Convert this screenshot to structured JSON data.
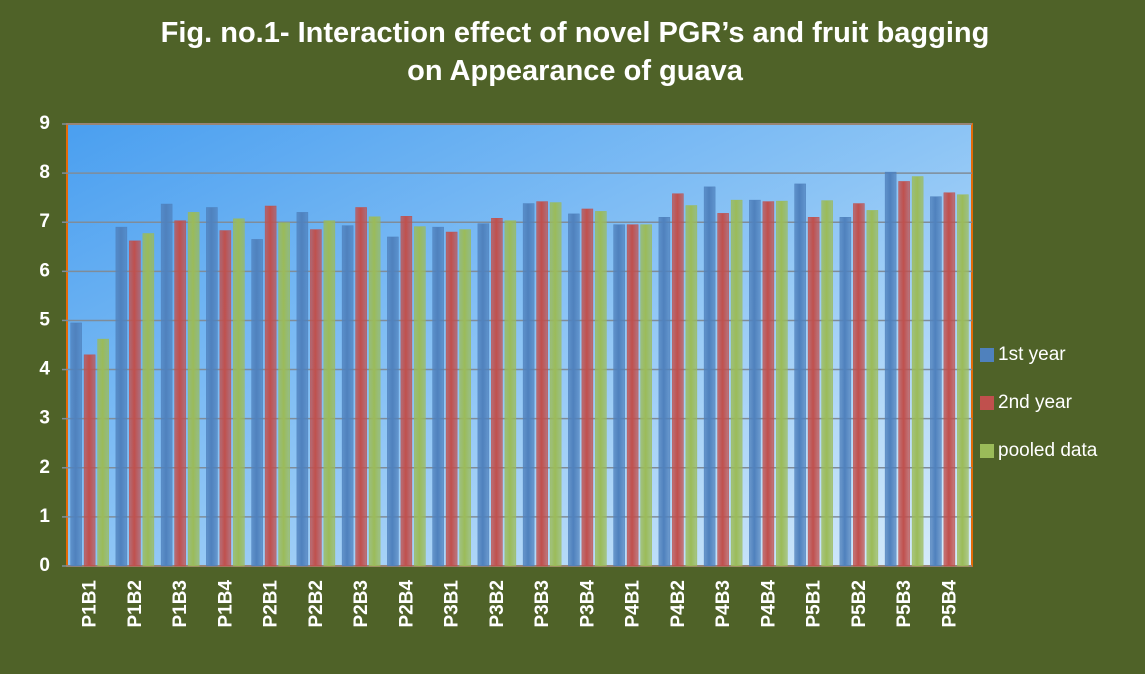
{
  "chart_data": {
    "type": "bar",
    "title": "Fig. no.1- Interaction effect of novel PGR’s and fruit bagging on Appearance  of guava",
    "categories": [
      "P1B1",
      "P1B2",
      "P1B3",
      "P1B4",
      "P2B1",
      "P2B2",
      "P2B3",
      "P2B4",
      "P3B1",
      "P3B2",
      "P3B3",
      "P3B4",
      "P4B1",
      "P4B2",
      "P4B3",
      "P4B4",
      "P5B1",
      "P5B2",
      "P5B3",
      "P5B4"
    ],
    "series": [
      {
        "name": "1st year",
        "color": "#4f81bd",
        "values": [
          4.95,
          6.9,
          7.37,
          7.3,
          6.65,
          7.2,
          6.93,
          6.7,
          6.9,
          6.97,
          7.38,
          7.17,
          6.95,
          7.1,
          7.72,
          7.45,
          7.78,
          7.1,
          8.02,
          7.52
        ]
      },
      {
        "name": "2nd year",
        "color": "#c0504d",
        "values": [
          4.3,
          6.62,
          7.03,
          6.83,
          7.33,
          6.85,
          7.3,
          7.12,
          6.8,
          7.08,
          7.42,
          7.27,
          6.95,
          7.58,
          7.18,
          7.42,
          7.1,
          7.38,
          7.83,
          7.6
        ]
      },
      {
        "name": "pooled data",
        "color": "#9bbb59",
        "values": [
          4.62,
          6.77,
          7.2,
          7.07,
          6.99,
          7.03,
          7.11,
          6.91,
          6.85,
          7.03,
          7.4,
          7.22,
          6.95,
          7.34,
          7.45,
          7.43,
          7.44,
          7.24,
          7.93,
          7.56
        ]
      }
    ],
    "ylim": [
      0,
      9
    ],
    "yticks": [
      0,
      1,
      2,
      3,
      4,
      5,
      6,
      7,
      8,
      9
    ],
    "grid": true,
    "legend": "right"
  }
}
